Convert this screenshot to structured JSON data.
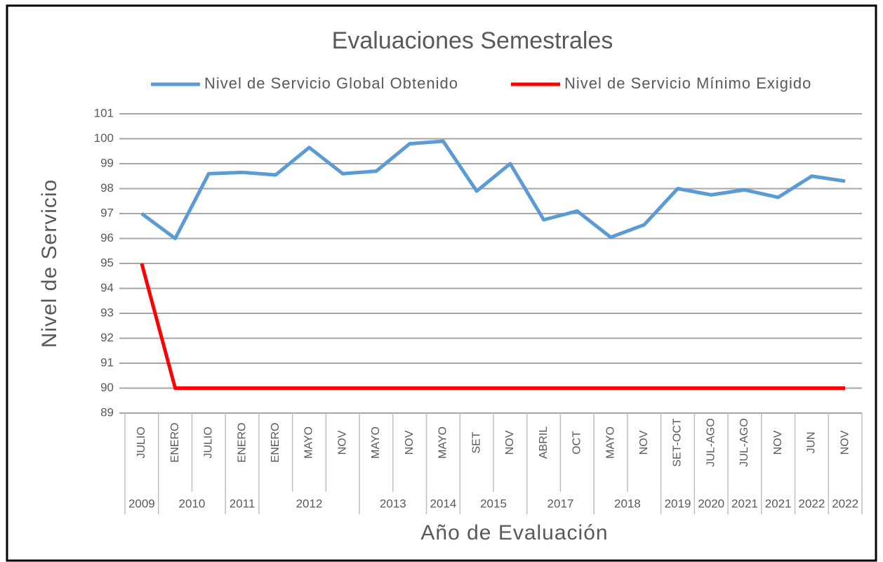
{
  "chart_data": {
    "type": "line",
    "title": "Evaluaciones Semestrales",
    "y_label": "Nivel de Servicio",
    "x_label": "Año de Evaluación",
    "category_groups": [
      {
        "name": "2009",
        "categories": [
          "JULIO"
        ]
      },
      {
        "name": "2010",
        "categories": [
          "ENERO",
          "JULIO"
        ]
      },
      {
        "name": "2011",
        "categories": [
          "ENERO"
        ]
      },
      {
        "name": "2012",
        "categories": [
          "ENERO",
          "MAYO",
          "NOV"
        ]
      },
      {
        "name": "2013",
        "categories": [
          "MAYO",
          "NOV"
        ]
      },
      {
        "name": "2014",
        "categories": [
          "MAYO"
        ]
      },
      {
        "name": "2015",
        "categories": [
          "SET",
          "NOV"
        ]
      },
      {
        "name": "2017",
        "categories": [
          "ABRIL",
          "OCT"
        ]
      },
      {
        "name": "2018",
        "categories": [
          "MAYO",
          "NOV"
        ]
      },
      {
        "name": "2019",
        "categories": [
          "SET-OCT"
        ]
      },
      {
        "name": "2020",
        "categories": [
          "JUL-AGO"
        ]
      },
      {
        "name": "2021",
        "categories": [
          "JUL-AGO"
        ]
      },
      {
        "name": "2021",
        "categories": [
          "NOV"
        ]
      },
      {
        "name": "2022",
        "categories": [
          "JUN"
        ]
      },
      {
        "name": "2022",
        "categories": [
          "NOV"
        ]
      }
    ],
    "series": [
      {
        "name": "Nivel de Servicio Global Obtenido",
        "color": "#5b9bd5",
        "values": [
          97.0,
          96.0,
          98.6,
          98.65,
          98.55,
          99.65,
          98.6,
          98.7,
          99.8,
          99.9,
          97.9,
          99.0,
          96.75,
          97.1,
          96.05,
          96.55,
          98.0,
          97.75,
          97.95,
          97.65,
          98.5,
          98.3
        ]
      },
      {
        "name": "Nivel de Servicio Mínimo Exigido",
        "color": "#ff0000",
        "values": [
          95,
          90,
          90,
          90,
          90,
          90,
          90,
          90,
          90,
          90,
          90,
          90,
          90,
          90,
          90,
          90,
          90,
          90,
          90,
          90,
          90,
          90
        ]
      }
    ],
    "ylim": [
      89,
      101
    ],
    "yticks": [
      89,
      90,
      91,
      92,
      93,
      94,
      95,
      96,
      97,
      98,
      99,
      100,
      101
    ],
    "grid": true,
    "legend": "top"
  }
}
